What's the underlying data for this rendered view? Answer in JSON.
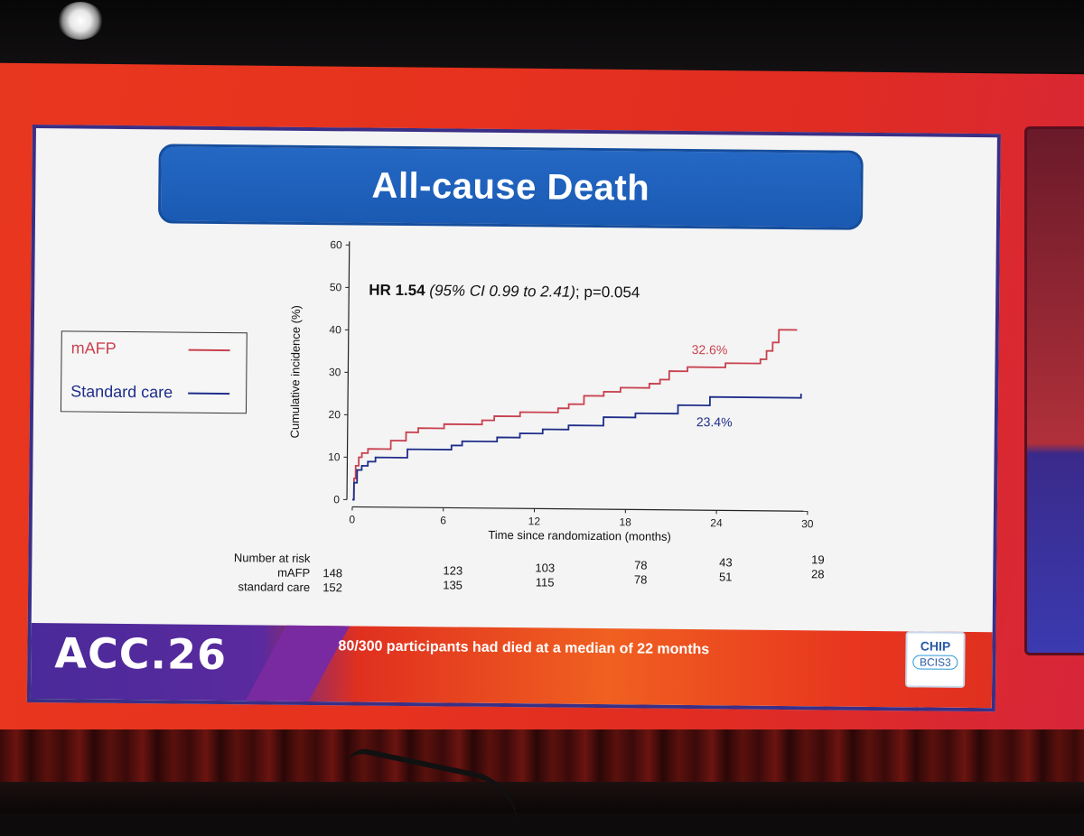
{
  "slide": {
    "title": "All-cause Death",
    "hr_bold": "HR 1.54",
    "hr_italic": " (95% CI 0.99 to 2.41)",
    "hr_rest": "; p=0.054",
    "label_mafp_end": "32.6%",
    "label_std_end": "23.4%",
    "footer_logo": "ACC.26",
    "footer_note": "80/300 participants had died at a median of 22 months",
    "badge_line1": "CHIP",
    "badge_line2": "BCIS3"
  },
  "legend": [
    {
      "name": "mAFP",
      "color": "#c8424f"
    },
    {
      "name": "Standard care",
      "color": "#1f2e8a"
    }
  ],
  "risk_table": {
    "title": "Number at risk",
    "rows": [
      {
        "label": "mAFP",
        "values": [
          148,
          123,
          103,
          78,
          43,
          19
        ]
      },
      {
        "label": "standard care",
        "values": [
          152,
          135,
          115,
          78,
          51,
          28
        ]
      }
    ]
  },
  "chart_data": {
    "type": "line",
    "title": "All-cause Death",
    "xlabel": "Time since randomization (months)",
    "ylabel": "Cumulative incidence (%)",
    "xlim": [
      0,
      30
    ],
    "ylim": [
      0,
      60
    ],
    "xticks": [
      0,
      6,
      12,
      18,
      24,
      30
    ],
    "yticks": [
      0,
      10,
      20,
      30,
      40,
      50,
      60
    ],
    "series": [
      {
        "name": "mAFP",
        "color": "#c8424f",
        "x": [
          0,
          0.1,
          0.2,
          0.4,
          0.6,
          1.0,
          2.1,
          2.5,
          3.5,
          4.3,
          6.0,
          8.5,
          9.3,
          11.0,
          13.5,
          14.2,
          15.2,
          16.5,
          17.6,
          19.5,
          20.2,
          20.8,
          22.0,
          24.5,
          26.8,
          27.2,
          27.6,
          28.0,
          29.2
        ],
        "y": [
          0,
          5,
          8,
          10,
          11,
          12,
          12,
          14,
          16,
          17,
          18,
          19,
          20,
          21,
          22,
          23,
          25,
          26,
          27,
          28,
          29,
          31,
          32,
          33,
          34,
          36,
          38,
          41,
          41
        ]
      },
      {
        "name": "Standard care",
        "color": "#1f2e8a",
        "x": [
          0,
          0.1,
          0.3,
          0.6,
          1.0,
          1.5,
          2.2,
          3.6,
          6.5,
          7.2,
          9.5,
          11.0,
          12.5,
          14.2,
          16.5,
          18.6,
          21.4,
          23.5,
          29.5
        ],
        "y": [
          0,
          4,
          7,
          8,
          9,
          10,
          10,
          12,
          13,
          14,
          15,
          16,
          17,
          18,
          20,
          21,
          23,
          25,
          26
        ]
      }
    ],
    "annotations": [
      "HR 1.54 (95% CI 0.99 to 2.41); p=0.054",
      "32.6%",
      "23.4%"
    ]
  }
}
